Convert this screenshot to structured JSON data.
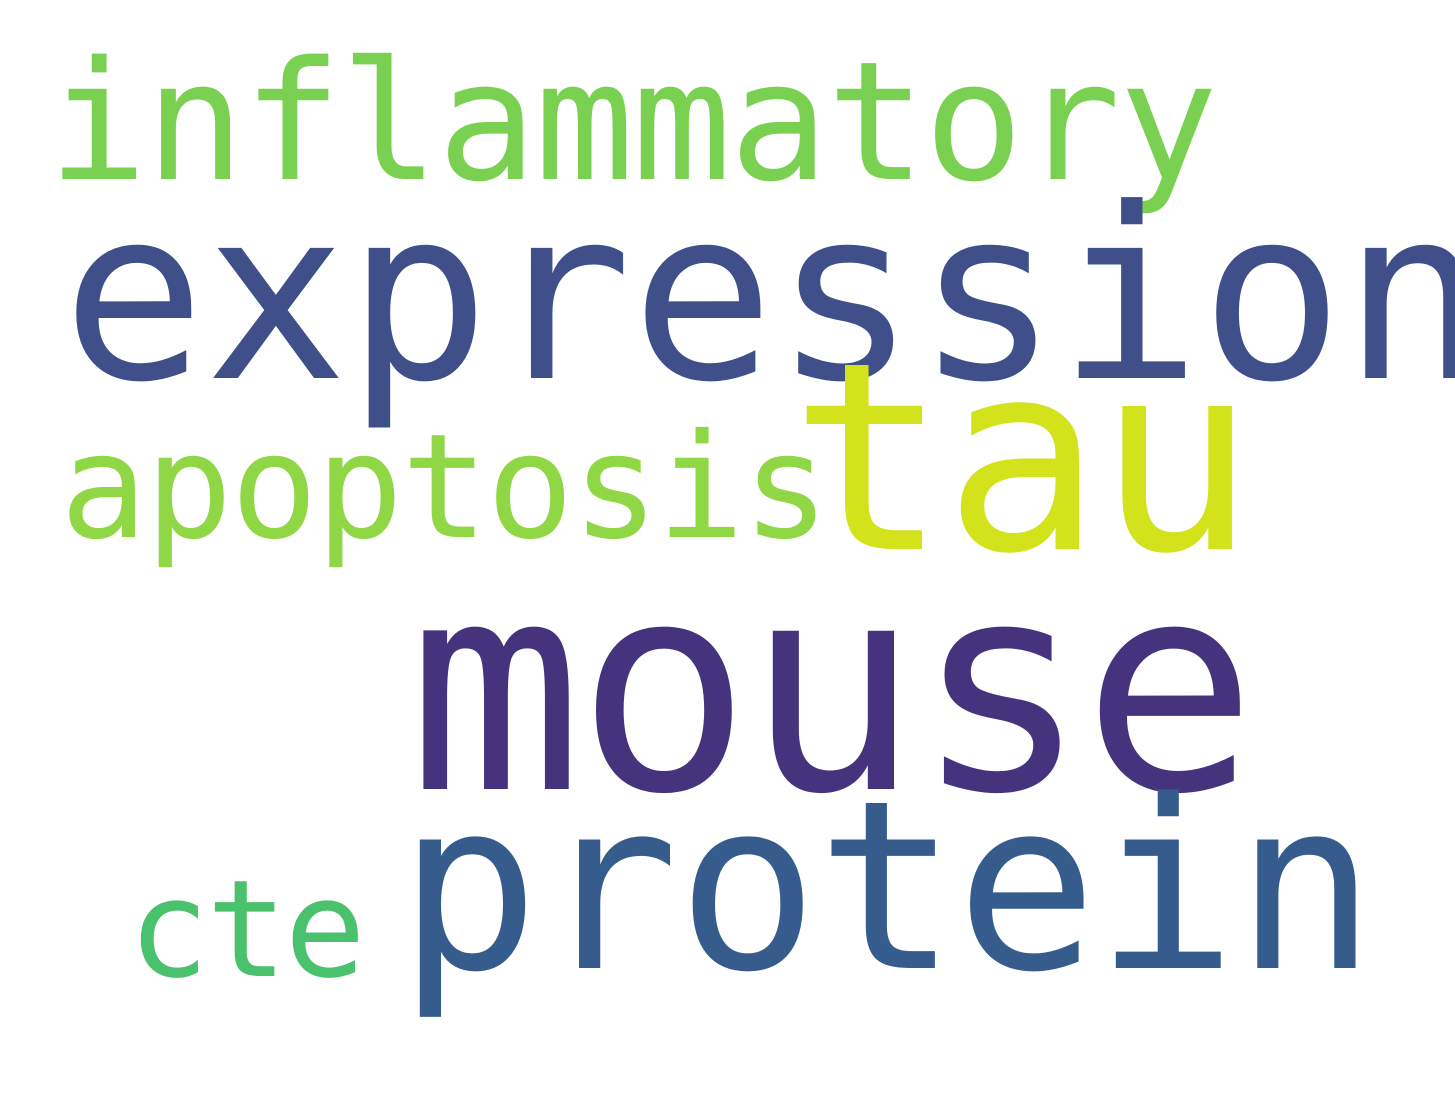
{
  "words": [
    {
      "text": "inflammatory",
      "color": "#7ad151"
    },
    {
      "text": "expression",
      "color": "#3e4f8a"
    },
    {
      "text": "tau",
      "color": "#d2e21b"
    },
    {
      "text": "apoptosis",
      "color": "#8fd744"
    },
    {
      "text": "mouse",
      "color": "#46337e"
    },
    {
      "text": "protein",
      "color": "#365c8d"
    },
    {
      "text": "cte",
      "color": "#4ac16d"
    }
  ]
}
